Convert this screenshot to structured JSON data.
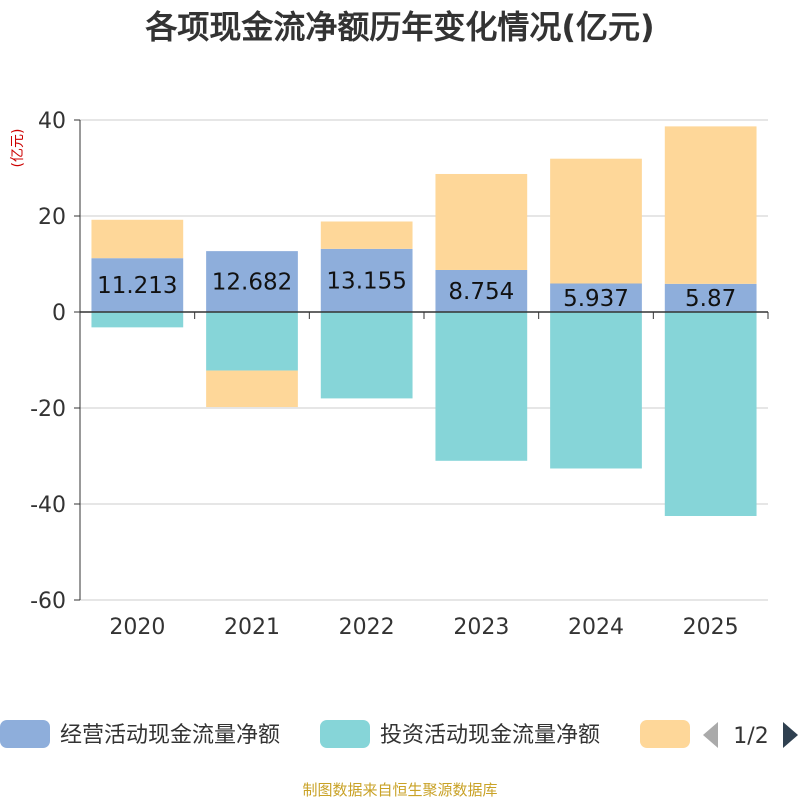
{
  "chart_data": {
    "type": "bar",
    "stacked": true,
    "title": "各项现金流净额历年变化情况(亿元)",
    "ylabel": "(亿元)",
    "xlabel": "",
    "ylim": [
      -60,
      40
    ],
    "yticks": [
      40,
      20,
      0,
      -20,
      -40,
      -60
    ],
    "categories": [
      "2020",
      "2021",
      "2022",
      "2023",
      "2024",
      "2025"
    ],
    "series": [
      {
        "name": "经营活动现金流量净额",
        "color": "#8eaedb",
        "values": [
          11.213,
          12.682,
          13.155,
          8.754,
          5.937,
          5.87
        ],
        "labels": [
          "11.213",
          "12.682",
          "13.155",
          "8.754",
          "5.937",
          "5.87"
        ]
      },
      {
        "name": "投资活动现金流量净额",
        "color": "#86d5d8",
        "values": [
          -3.2,
          -12.2,
          -18.0,
          -31.0,
          -32.6,
          -42.5
        ]
      },
      {
        "name": "",
        "color": "#fed799",
        "values": [
          8.0,
          -7.6,
          5.7,
          20.0,
          26.0,
          32.8
        ]
      }
    ],
    "legend": {
      "position": "bottom",
      "page": "1/2"
    }
  },
  "footer": {
    "source": "制图数据来自恒生聚源数据库"
  }
}
